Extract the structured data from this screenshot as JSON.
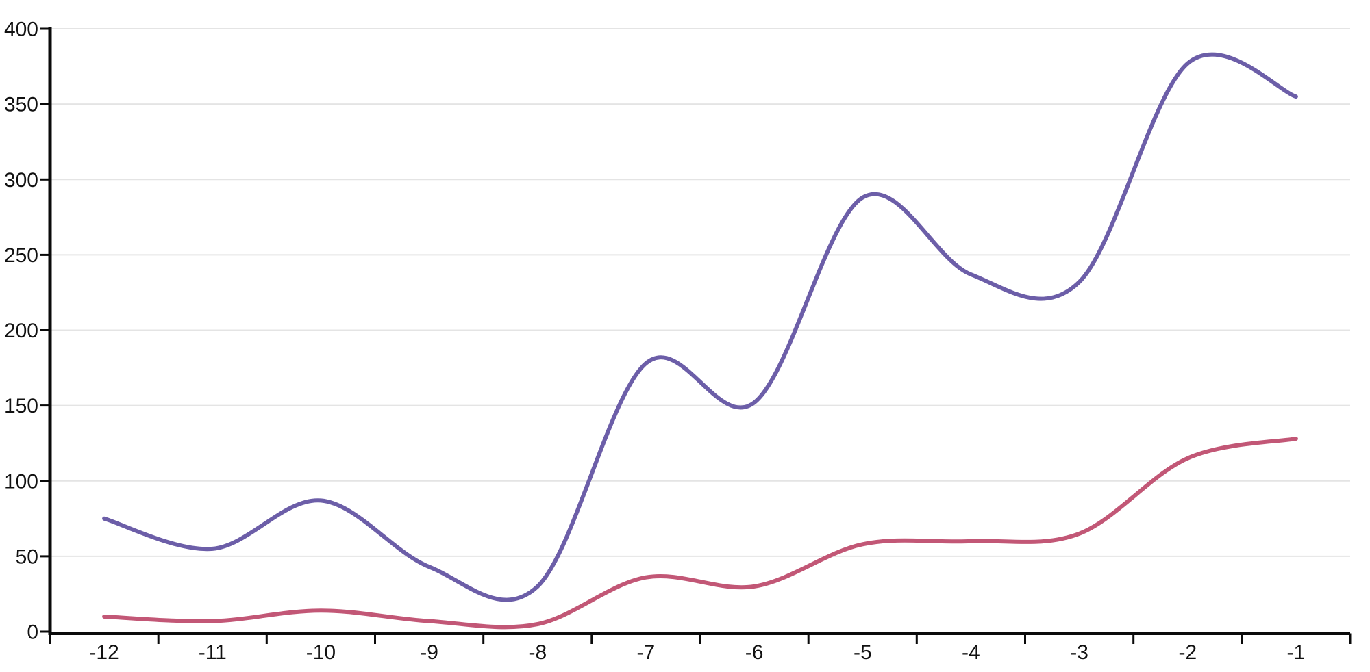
{
  "page": {
    "background": "#ffffff"
  },
  "chart_data": {
    "type": "line",
    "title": "",
    "xlabel": "",
    "ylabel": "",
    "x": [
      -12,
      -11,
      -10,
      -9,
      -8,
      -7,
      -6,
      -5,
      -4,
      -3,
      -2,
      -1
    ],
    "x_tick_labels": [
      "-12",
      "-11",
      "-10",
      "-9",
      "-8",
      "-7",
      "-6",
      "-5",
      "-4",
      "-3",
      "-2",
      "-1"
    ],
    "series": [
      {
        "name": "upper-purple-line",
        "color": "#6c5ea8",
        "values": [
          75,
          55,
          87,
          43,
          30,
          178,
          152,
          288,
          237,
          232,
          377,
          355
        ]
      },
      {
        "name": "lower-pink-line",
        "color": "#c25776",
        "values": [
          10,
          7,
          14,
          7,
          5,
          36,
          30,
          58,
          60,
          65,
          115,
          128
        ]
      }
    ],
    "ylim": [
      0,
      400
    ],
    "y_tick_step": 50,
    "y_tick_labels": [
      "0",
      "50",
      "100",
      "150",
      "200",
      "250",
      "300",
      "350",
      "400"
    ],
    "grid": true,
    "legend": false,
    "curve": "catmull-rom",
    "ticks_between_categories": true,
    "colors": {
      "axis": "#0a0a0a",
      "gridline": "#e4e4e4",
      "tick_label": "#111111"
    }
  }
}
